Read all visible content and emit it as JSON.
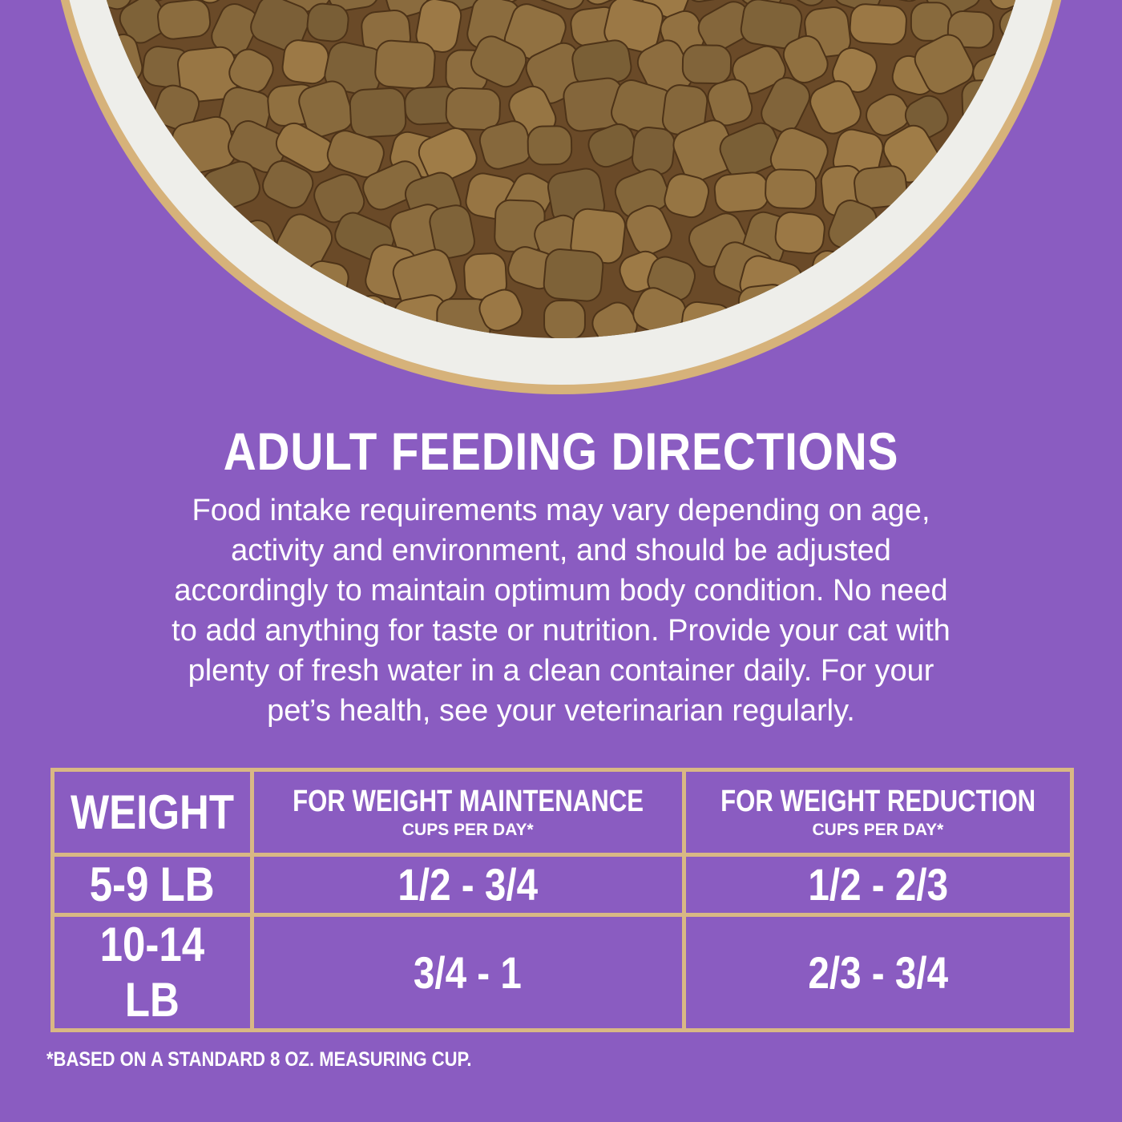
{
  "header": {
    "title": "ADULT FEEDING DIRECTIONS"
  },
  "intro": {
    "lines": [
      "Food intake requirements may vary depending on age,",
      "activity and environment, and should be adjusted",
      "accordingly to maintain optimum body condition. No need",
      "to add anything for taste or nutrition. Provide your cat with",
      "plenty of fresh water in a clean container daily. For your",
      "pet’s health, see your veterinarian regularly."
    ]
  },
  "table": {
    "headers": [
      {
        "title": "WEIGHT"
      },
      {
        "title": "FOR WEIGHT MAINTENANCE",
        "subtitle": "CUPS PER DAY*"
      },
      {
        "title": "FOR WEIGHT REDUCTION",
        "subtitle": "CUPS PER DAY*"
      }
    ],
    "rows": [
      [
        "5-9 LB",
        "1/2 - 3/4",
        "1/2 - 2/3"
      ],
      [
        "10-14 LB",
        "3/4 - 1",
        "2/3 - 3/4"
      ]
    ]
  },
  "footnote": "*BASED ON A STANDARD 8 OZ. MEASURING CUP."
}
